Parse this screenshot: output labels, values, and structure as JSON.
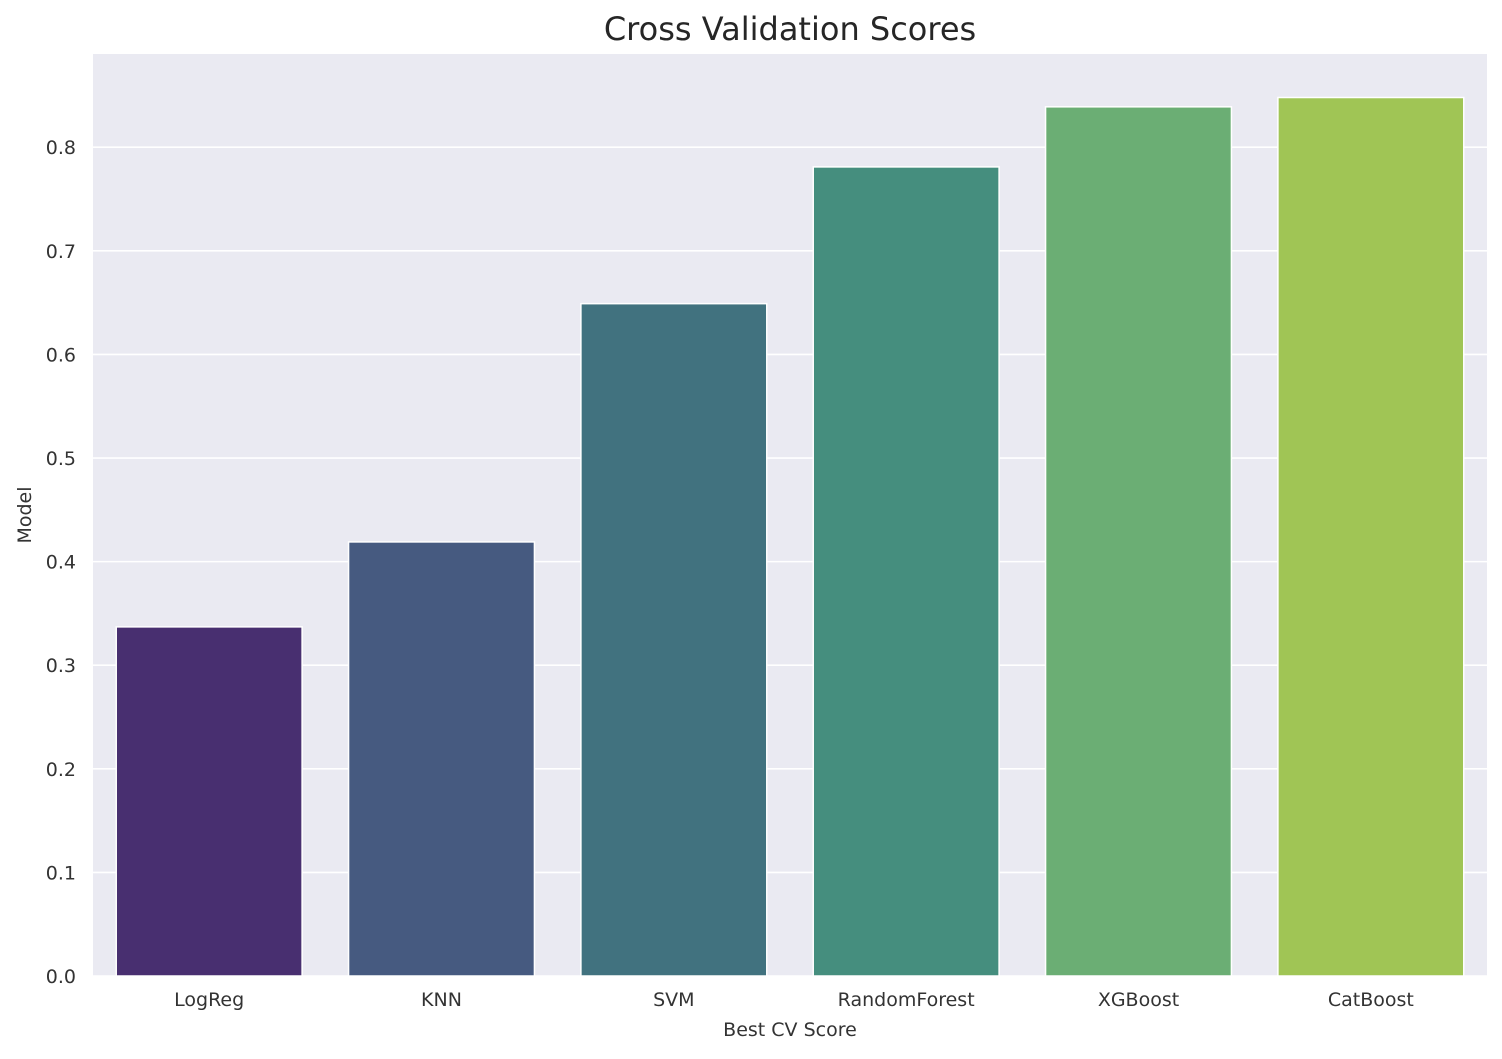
{
  "chart_data": {
    "type": "bar",
    "title": "Cross Validation Scores",
    "xlabel": "Best CV Score",
    "ylabel": "Model",
    "categories": [
      "LogReg",
      "KNN",
      "SVM",
      "RandomForest",
      "XGBoost",
      "CatBoost"
    ],
    "values": [
      0.337,
      0.419,
      0.649,
      0.781,
      0.839,
      0.848
    ],
    "ylim": [
      0,
      0.89
    ],
    "yticks": [
      "0.0",
      "0.1",
      "0.2",
      "0.3",
      "0.4",
      "0.5",
      "0.6",
      "0.7",
      "0.8"
    ],
    "grid": true,
    "legend": "none",
    "colors": [
      "#482f70",
      "#465a80",
      "#41727f",
      "#458e7e",
      "#6bae74",
      "#a0c555"
    ],
    "background_color": "#eaeaf2",
    "grid_color": "#ffffff"
  }
}
